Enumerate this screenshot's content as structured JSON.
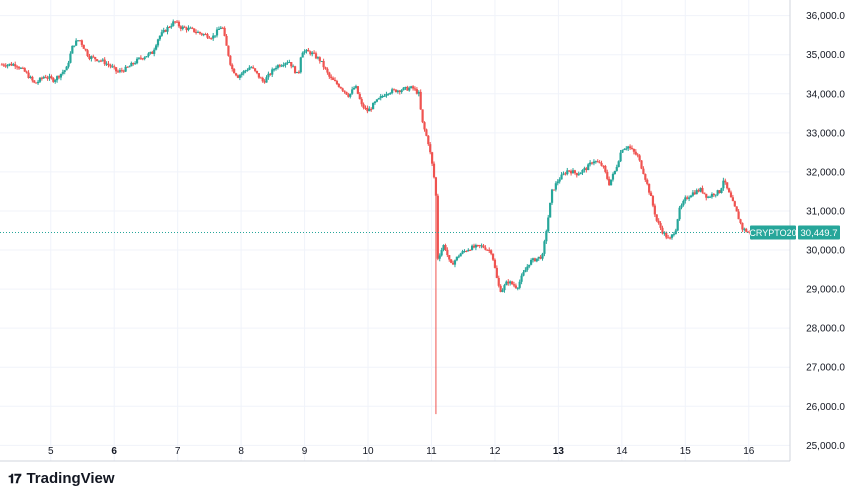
{
  "chart_data": {
    "type": "candlestick",
    "symbol_label": "CRYPTO20",
    "last_price_label": "30,449.7",
    "last_price": 30449.7,
    "y_ticks": [
      {
        "value": 25000,
        "label": "25,000.0"
      },
      {
        "value": 26000,
        "label": "26,000.0"
      },
      {
        "value": 27000,
        "label": "27,000.0"
      },
      {
        "value": 28000,
        "label": "28,000.0"
      },
      {
        "value": 29000,
        "label": "29,000.0"
      },
      {
        "value": 30000,
        "label": "30,000.0"
      },
      {
        "value": 31000,
        "label": "31,000.0"
      },
      {
        "value": 32000,
        "label": "32,000.0"
      },
      {
        "value": 33000,
        "label": "33,000.0"
      },
      {
        "value": 34000,
        "label": "34,000.0"
      },
      {
        "value": 35000,
        "label": "35,000.0"
      },
      {
        "value": 36000,
        "label": "36,000.0"
      }
    ],
    "ylim": [
      24600,
      36400
    ],
    "x_ticks": [
      {
        "day": 5,
        "label": "5",
        "bold": false
      },
      {
        "day": 6,
        "label": "6",
        "bold": true
      },
      {
        "day": 7,
        "label": "7",
        "bold": false
      },
      {
        "day": 8,
        "label": "8",
        "bold": false
      },
      {
        "day": 9,
        "label": "9",
        "bold": false
      },
      {
        "day": 10,
        "label": "10",
        "bold": false
      },
      {
        "day": 11,
        "label": "11",
        "bold": false
      },
      {
        "day": 12,
        "label": "12",
        "bold": false
      },
      {
        "day": 13,
        "label": "13",
        "bold": true
      },
      {
        "day": 14,
        "label": "14",
        "bold": false
      },
      {
        "day": 15,
        "label": "15",
        "bold": false
      },
      {
        "day": 16,
        "label": "16",
        "bold": false
      }
    ],
    "xlim": [
      4.2,
      16.65
    ],
    "up_color": "#26a69a",
    "down_color": "#ef5350",
    "close_path": [
      [
        4.2,
        34750
      ],
      [
        4.45,
        34750
      ],
      [
        4.6,
        34550
      ],
      [
        4.75,
        34250
      ],
      [
        4.9,
        34450
      ],
      [
        5.05,
        34350
      ],
      [
        5.25,
        34650
      ],
      [
        5.35,
        35250
      ],
      [
        5.45,
        35400
      ],
      [
        5.6,
        34950
      ],
      [
        5.8,
        34850
      ],
      [
        5.95,
        34700
      ],
      [
        6.05,
        34550
      ],
      [
        6.2,
        34650
      ],
      [
        6.4,
        34900
      ],
      [
        6.6,
        35050
      ],
      [
        6.7,
        35450
      ],
      [
        6.85,
        35700
      ],
      [
        6.95,
        35850
      ],
      [
        7.05,
        35700
      ],
      [
        7.2,
        35650
      ],
      [
        7.35,
        35550
      ],
      [
        7.55,
        35450
      ],
      [
        7.7,
        35750
      ],
      [
        7.75,
        35350
      ],
      [
        7.85,
        34650
      ],
      [
        7.95,
        34450
      ],
      [
        8.15,
        34700
      ],
      [
        8.35,
        34300
      ],
      [
        8.55,
        34700
      ],
      [
        8.75,
        34850
      ],
      [
        8.9,
        34450
      ],
      [
        8.95,
        35100
      ],
      [
        9.1,
        35050
      ],
      [
        9.25,
        34850
      ],
      [
        9.4,
        34400
      ],
      [
        9.55,
        34200
      ],
      [
        9.7,
        33950
      ],
      [
        9.8,
        34200
      ],
      [
        9.9,
        33700
      ],
      [
        10.0,
        33550
      ],
      [
        10.1,
        33750
      ],
      [
        10.3,
        34050
      ],
      [
        10.5,
        34100
      ],
      [
        10.7,
        34150
      ],
      [
        10.8,
        34000
      ],
      [
        10.85,
        33300
      ],
      [
        10.95,
        32750
      ],
      [
        11.0,
        32300
      ],
      [
        11.05,
        31750
      ],
      [
        11.08,
        31200
      ],
      [
        11.1,
        29800
      ],
      [
        11.2,
        30150
      ],
      [
        11.3,
        29600
      ],
      [
        11.45,
        29900
      ],
      [
        11.6,
        30050
      ],
      [
        11.8,
        30100
      ],
      [
        11.95,
        29950
      ],
      [
        12.05,
        29100
      ],
      [
        12.1,
        28950
      ],
      [
        12.2,
        29200
      ],
      [
        12.35,
        29050
      ],
      [
        12.45,
        29400
      ],
      [
        12.55,
        29700
      ],
      [
        12.75,
        29850
      ],
      [
        12.8,
        30400
      ],
      [
        12.9,
        31500
      ],
      [
        13.0,
        31800
      ],
      [
        13.15,
        32050
      ],
      [
        13.3,
        31950
      ],
      [
        13.45,
        32100
      ],
      [
        13.55,
        32300
      ],
      [
        13.7,
        32150
      ],
      [
        13.8,
        31700
      ],
      [
        13.9,
        32050
      ],
      [
        14.0,
        32600
      ],
      [
        14.1,
        32650
      ],
      [
        14.25,
        32400
      ],
      [
        14.35,
        31950
      ],
      [
        14.45,
        31400
      ],
      [
        14.55,
        30750
      ],
      [
        14.65,
        30450
      ],
      [
        14.75,
        30250
      ],
      [
        14.85,
        30550
      ],
      [
        14.9,
        31000
      ],
      [
        15.0,
        31300
      ],
      [
        15.1,
        31450
      ],
      [
        15.25,
        31550
      ],
      [
        15.35,
        31350
      ],
      [
        15.45,
        31450
      ],
      [
        15.55,
        31500
      ],
      [
        15.6,
        31800
      ],
      [
        15.7,
        31400
      ],
      [
        15.8,
        31000
      ],
      [
        15.9,
        30550
      ],
      [
        16.0,
        30450
      ],
      [
        16.05,
        30350
      ],
      [
        16.15,
        30449.7
      ]
    ]
  },
  "branding": {
    "logo_mark": "𝟏𝟕",
    "logo_text": "TradingView"
  }
}
